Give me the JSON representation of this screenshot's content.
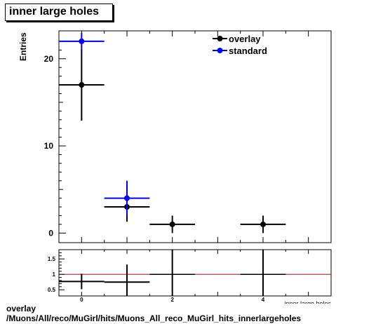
{
  "chart_data": [
    {
      "type": "scatter",
      "title": "inner large holes",
      "xlabel": "inner large holes",
      "ylabel": "Entries",
      "xlim": [
        -0.5,
        5.5
      ],
      "ylim": [
        -1.1,
        23.2
      ],
      "x_ticks": [
        0,
        2,
        4
      ],
      "y_ticks": [
        0,
        10,
        20
      ],
      "grid": false,
      "legend_position": "top-right",
      "series": [
        {
          "name": "overlay",
          "color": "#000000",
          "x": [
            0,
            1,
            2,
            4
          ],
          "y": [
            17,
            3,
            1,
            1
          ],
          "yerr": [
            4.1,
            1.7,
            1.0,
            1.0
          ],
          "xerr": 0.5
        },
        {
          "name": "standard",
          "color": "#0000ff",
          "x": [
            0,
            1
          ],
          "y": [
            22,
            4
          ],
          "yerr": [
            1.0,
            2.0
          ],
          "xerr": 0.5
        }
      ]
    },
    {
      "type": "scatter",
      "title": "",
      "xlim": [
        -0.5,
        5.5
      ],
      "ylim": [
        0.3,
        1.8
      ],
      "x_ticks": [
        0,
        2,
        4
      ],
      "y_ticks": [
        0.5,
        1,
        1.5
      ],
      "reference_line": {
        "y": 1,
        "color": "#b22222"
      },
      "series": [
        {
          "name": "",
          "color": "#000000",
          "x": [
            0,
            1,
            2,
            4
          ],
          "y": [
            0.77,
            0.75,
            1.0,
            1.0
          ],
          "yerr": [
            0.25,
            0.57,
            1.41,
            1.41
          ],
          "xerr": 0.5
        }
      ]
    }
  ],
  "caption": {
    "line1": "overlay",
    "line2": "/Muons/All/reco/MuGirl/hits/Muons_All_reco_MuGirl_hits_innerlargeholes"
  }
}
